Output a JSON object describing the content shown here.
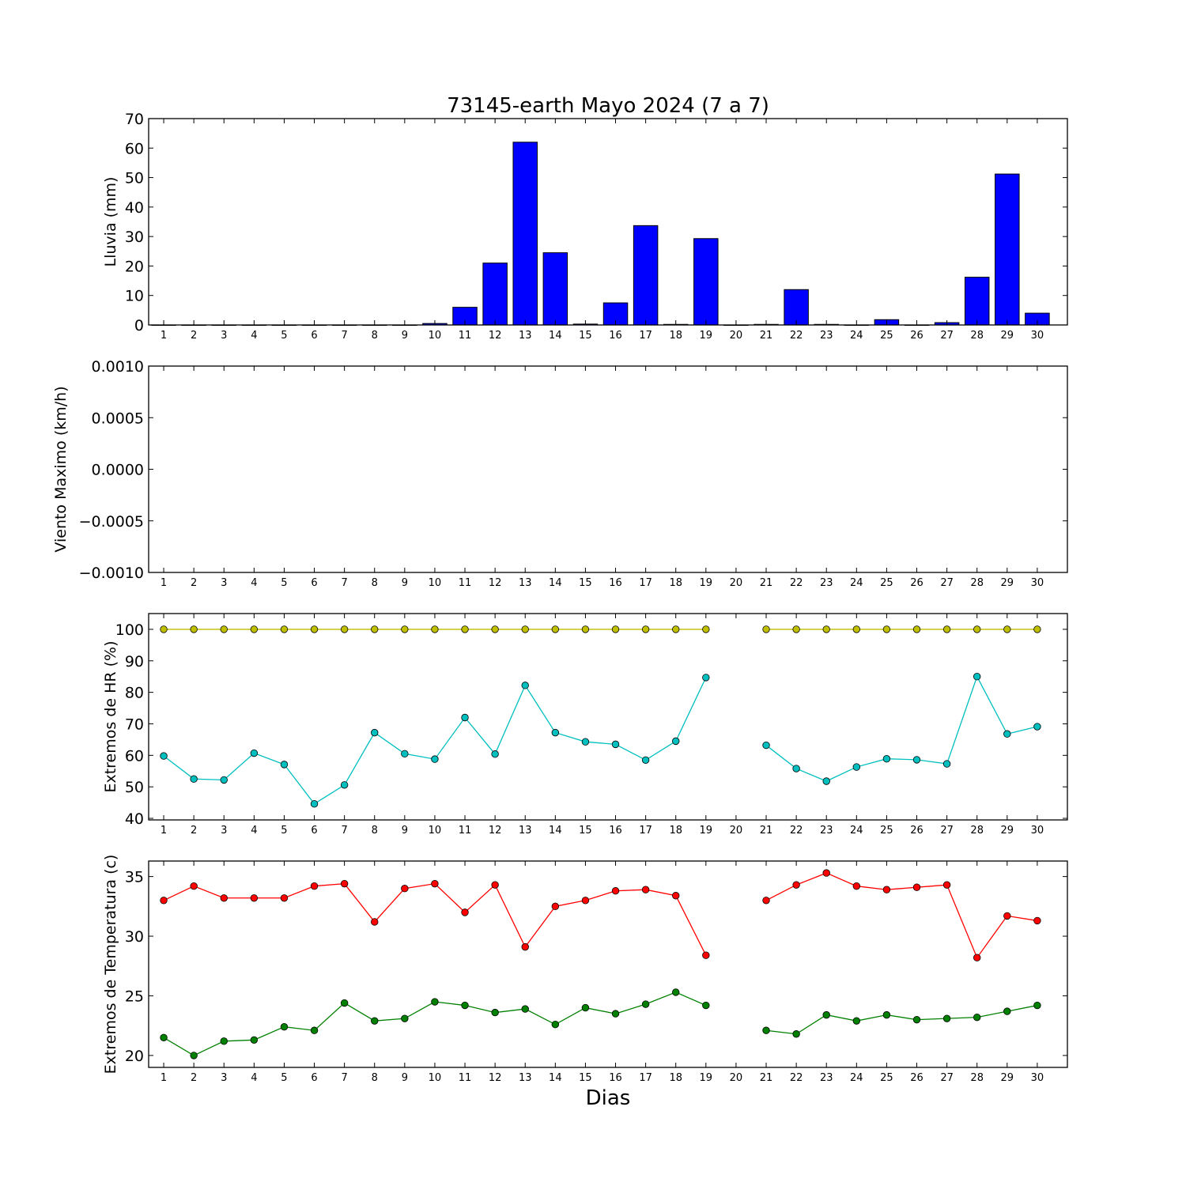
{
  "chart_data": [
    {
      "type": "bar",
      "title": "73145-earth Mayo 2024  (7 a 7)",
      "xlabel": "",
      "ylabel": "Lluvia (mm)",
      "ylim": [
        0,
        70
      ],
      "yticks": [
        "0",
        "10",
        "20",
        "30",
        "40",
        "50",
        "60",
        "70"
      ],
      "categories": [
        "1",
        "2",
        "3",
        "4",
        "5",
        "6",
        "7",
        "8",
        "9",
        "10",
        "11",
        "12",
        "13",
        "14",
        "15",
        "16",
        "17",
        "18",
        "19",
        "20",
        "21",
        "22",
        "23",
        "24",
        "25",
        "26",
        "27",
        "28",
        "29",
        "30"
      ],
      "values": [
        0,
        0,
        0,
        0,
        0,
        0,
        0,
        0,
        0,
        0.5,
        6,
        21,
        62,
        24.5,
        0.3,
        7.5,
        33.7,
        0.2,
        29.3,
        0,
        0.2,
        12,
        0.2,
        0,
        1.8,
        0,
        0.8,
        16.2,
        51.2,
        4
      ],
      "colors": {
        "bar": "#0000ff",
        "edge": "#000000"
      }
    },
    {
      "type": "line",
      "ylabel": "Viento Maximo (km/h)",
      "ylim": [
        -0.001,
        0.001
      ],
      "yticks": [
        "−0.0010",
        "−0.0005",
        "0.0000",
        "0.0005",
        "0.0010"
      ],
      "categories": [
        "1",
        "2",
        "3",
        "4",
        "5",
        "6",
        "7",
        "8",
        "9",
        "10",
        "11",
        "12",
        "13",
        "14",
        "15",
        "16",
        "17",
        "18",
        "19",
        "20",
        "21",
        "22",
        "23",
        "24",
        "25",
        "26",
        "27",
        "28",
        "29",
        "30"
      ],
      "series": []
    },
    {
      "type": "line",
      "ylabel": "Extremos de HR (%)",
      "ylim": [
        39.5,
        105
      ],
      "yticks": [
        "40",
        "50",
        "60",
        "70",
        "80",
        "90",
        "100"
      ],
      "categories": [
        "1",
        "2",
        "3",
        "4",
        "5",
        "6",
        "7",
        "8",
        "9",
        "10",
        "11",
        "12",
        "13",
        "14",
        "15",
        "16",
        "17",
        "18",
        "19",
        "20",
        "21",
        "22",
        "23",
        "24",
        "25",
        "26",
        "27",
        "28",
        "29",
        "30"
      ],
      "series": [
        {
          "color": "#bfbf00",
          "values": [
            100,
            100,
            100,
            100,
            100,
            100,
            100,
            100,
            100,
            100,
            100,
            100,
            100,
            100,
            100,
            100,
            100,
            100,
            100,
            null,
            100,
            100,
            100,
            100,
            100,
            100,
            100,
            100,
            100,
            100
          ]
        },
        {
          "color": "#00bfbf",
          "values": [
            59.8,
            52.5,
            52.2,
            60.7,
            57.1,
            44.6,
            50.6,
            67.2,
            60.5,
            58.8,
            72,
            60.4,
            82.2,
            67.2,
            64.3,
            63.5,
            58.5,
            64.5,
            84.7,
            null,
            63.2,
            55.8,
            51.8,
            56.3,
            58.9,
            58.6,
            57.3,
            85,
            66.8,
            69.1
          ]
        }
      ]
    },
    {
      "type": "line",
      "ylabel": "Extremos de Temperatura (c)",
      "xlabel": "Dias",
      "ylim": [
        19,
        36.3
      ],
      "yticks": [
        "20",
        "25",
        "30",
        "35"
      ],
      "categories": [
        "1",
        "2",
        "3",
        "4",
        "5",
        "6",
        "7",
        "8",
        "9",
        "10",
        "11",
        "12",
        "13",
        "14",
        "15",
        "16",
        "17",
        "18",
        "19",
        "20",
        "21",
        "22",
        "23",
        "24",
        "25",
        "26",
        "27",
        "28",
        "29",
        "30"
      ],
      "series": [
        {
          "color": "#ff0000",
          "values": [
            33,
            34.2,
            33.2,
            33.2,
            33.2,
            34.2,
            34.4,
            31.2,
            34,
            34.4,
            32,
            34.3,
            29.1,
            32.5,
            33,
            33.8,
            33.9,
            33.4,
            28.4,
            null,
            33,
            34.3,
            35.3,
            34.2,
            33.9,
            34.1,
            34.3,
            28.2,
            31.7,
            31.3
          ]
        },
        {
          "color": "#008000",
          "values": [
            21.5,
            20,
            21.2,
            21.3,
            22.4,
            22.1,
            24.4,
            22.9,
            23.1,
            24.5,
            24.2,
            23.6,
            23.9,
            22.6,
            24,
            23.5,
            24.3,
            25.3,
            24.2,
            null,
            22.1,
            21.8,
            23.4,
            22.9,
            23.4,
            23,
            23.1,
            23.2,
            23.7,
            24.2
          ]
        }
      ]
    }
  ]
}
